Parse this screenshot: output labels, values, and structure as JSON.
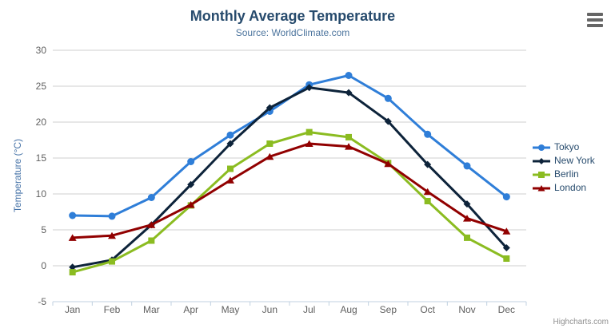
{
  "chart": {
    "title": "Monthly Average Temperature",
    "subtitle": "Source: WorldClimate.com",
    "credits": "Highcharts.com",
    "context_menu_icon": "hamburger-icon"
  },
  "colors": {
    "title": "#274b6d",
    "subtitle": "#4d759e",
    "axis_label": "#606060",
    "y_axis_title": "#4572a7",
    "grid_line": "#cfcfcf",
    "axis_line": "#c0d0e0",
    "legend_text": "#274b6d",
    "credits_text": "#909090"
  },
  "chart_data": {
    "type": "line",
    "title": "Monthly Average Temperature",
    "subtitle": "Source: WorldClimate.com",
    "categories": [
      "Jan",
      "Feb",
      "Mar",
      "Apr",
      "May",
      "Jun",
      "Jul",
      "Aug",
      "Sep",
      "Oct",
      "Nov",
      "Dec"
    ],
    "series": [
      {
        "name": "Tokyo",
        "color": "#2f7ed8",
        "marker": "circle",
        "values": [
          7.0,
          6.9,
          9.5,
          14.5,
          18.2,
          21.5,
          25.2,
          26.5,
          23.3,
          18.3,
          13.9,
          9.6
        ]
      },
      {
        "name": "New York",
        "color": "#0d233a",
        "marker": "diamond",
        "values": [
          -0.2,
          0.8,
          5.7,
          11.3,
          17.0,
          22.0,
          24.8,
          24.1,
          20.1,
          14.1,
          8.6,
          2.5
        ]
      },
      {
        "name": "Berlin",
        "color": "#8bbc21",
        "marker": "square",
        "values": [
          -0.9,
          0.6,
          3.5,
          8.4,
          13.5,
          17.0,
          18.6,
          17.9,
          14.3,
          9.0,
          3.9,
          1.0
        ]
      },
      {
        "name": "London",
        "color": "#910000",
        "marker": "triangle",
        "values": [
          3.9,
          4.2,
          5.7,
          8.5,
          11.9,
          15.2,
          17.0,
          16.6,
          14.2,
          10.3,
          6.6,
          4.8
        ]
      }
    ],
    "xlabel": "",
    "ylabel": "Temperature (°C)",
    "ylim": [
      -5,
      30
    ],
    "ytick_interval": 5,
    "grid": true,
    "legend_position": "right"
  }
}
